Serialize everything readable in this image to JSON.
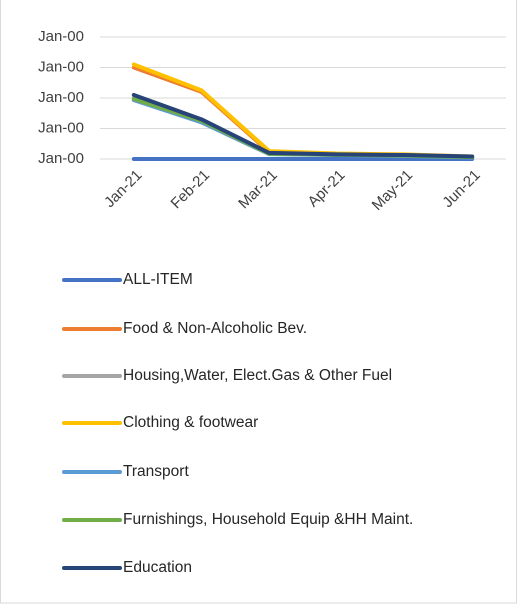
{
  "chart_data": {
    "type": "line",
    "categories": [
      "Jan-21",
      "Feb-21",
      "Mar-21",
      "Apr-21",
      "May-21",
      "Jun-21"
    ],
    "ylim": [
      0,
      4
    ],
    "yticks": [
      {
        "value": 0,
        "label": "Jan-00"
      },
      {
        "value": 1,
        "label": "Jan-00"
      },
      {
        "value": 2,
        "label": "Jan-00"
      },
      {
        "value": 3,
        "label": "Jan-00"
      },
      {
        "value": 4,
        "label": "Jan-00"
      }
    ],
    "grid": true,
    "legend": "bottom",
    "series": [
      {
        "name": "ALL-ITEM",
        "color": "#4472c4",
        "values": [
          0,
          0,
          0,
          0,
          0,
          0
        ]
      },
      {
        "name": "Food & Non-Alcoholic Bev.",
        "color": "#ed7d31",
        "values": [
          3.0,
          2.2,
          0.23,
          0.16,
          0.13,
          0.07
        ]
      },
      {
        "name": "Housing,Water, Elect.Gas & Other Fuel",
        "color": "#a5a5a5",
        "values": [
          2.0,
          1.25,
          0.17,
          0.14,
          0.11,
          0.06
        ]
      },
      {
        "name": "Clothing & footwear",
        "color": "#ffc000",
        "values": [
          3.1,
          2.25,
          0.26,
          0.18,
          0.15,
          0.08
        ]
      },
      {
        "name": "Transport",
        "color": "#5b9bd5",
        "values": [
          1.93,
          1.2,
          0.16,
          0.13,
          0.1,
          0.05
        ]
      },
      {
        "name": "Furnishings, Household Equip &HH Maint.",
        "color": "#70ad47",
        "values": [
          1.97,
          1.25,
          0.17,
          0.14,
          0.11,
          0.06
        ]
      },
      {
        "name": "Education",
        "color": "#264478",
        "values": [
          2.1,
          1.3,
          0.2,
          0.15,
          0.13,
          0.08
        ]
      }
    ]
  }
}
